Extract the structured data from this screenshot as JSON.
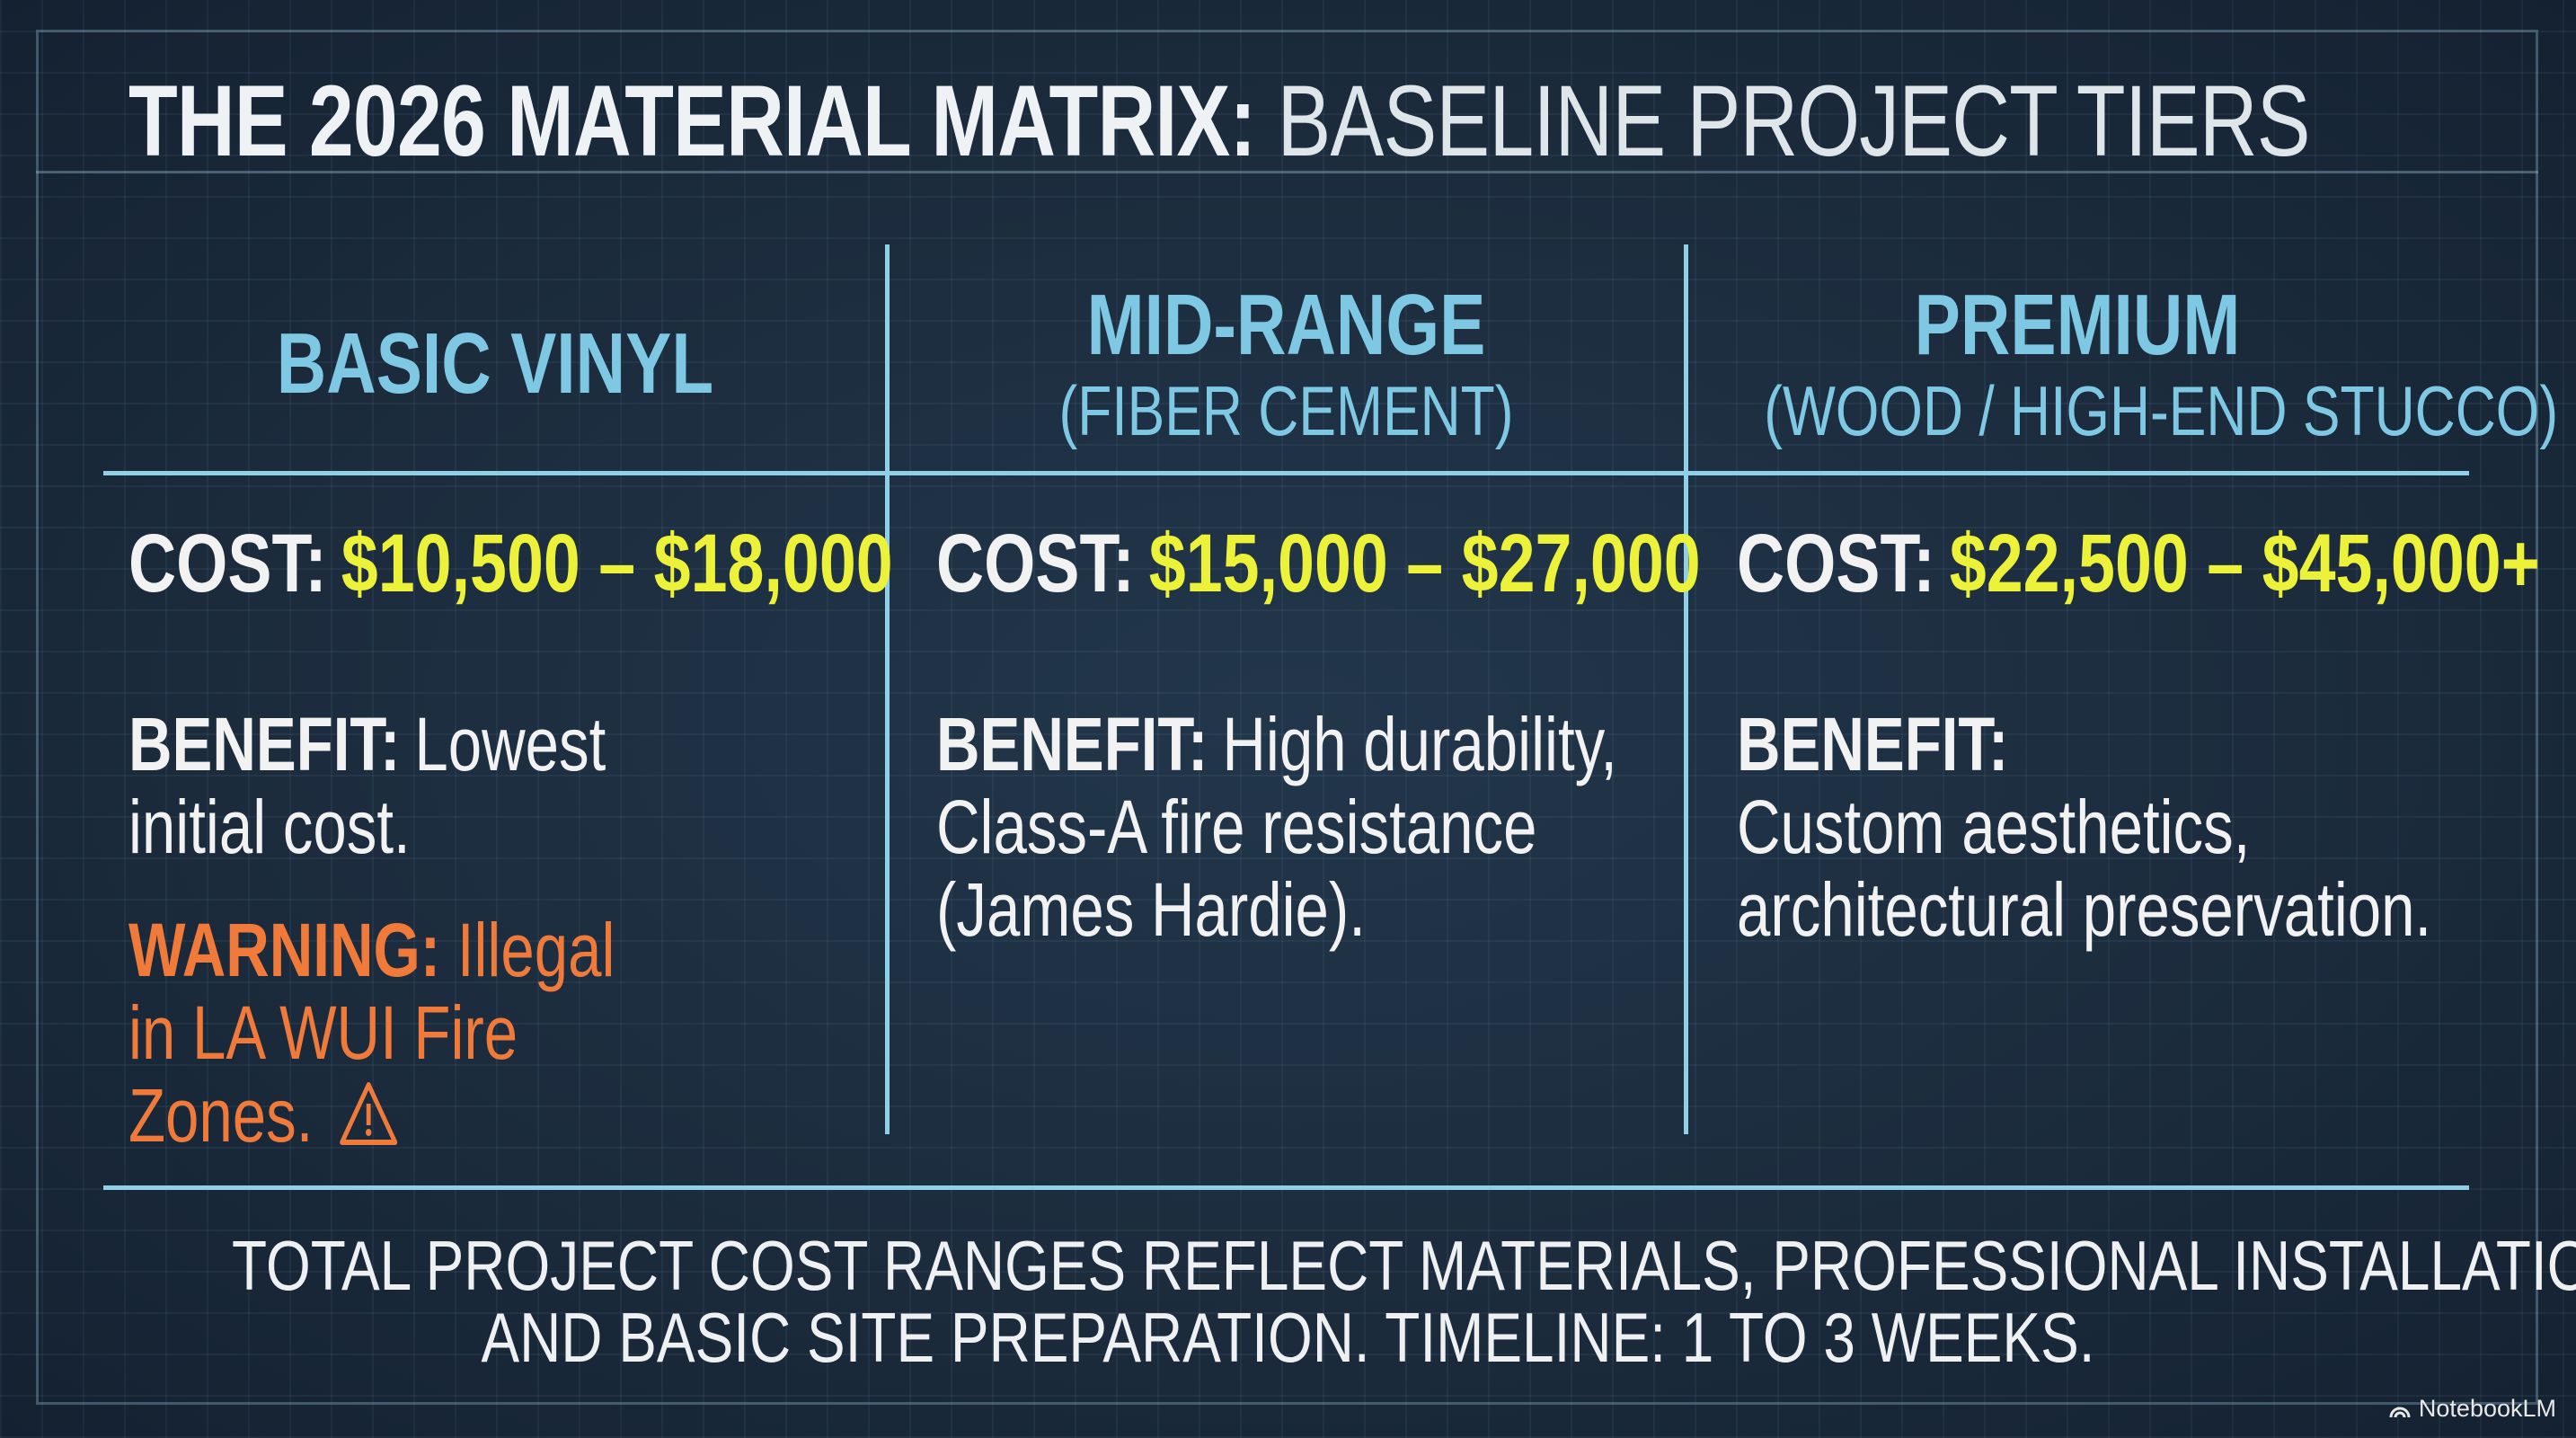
{
  "title": {
    "bold": "THE 2026 MATERIAL MATRIX:",
    "regular": "BASELINE PROJECT TIERS"
  },
  "columns": [
    {
      "heading": "BASIC VINYL",
      "cost_label": "COST:",
      "cost": "$10,500 – $18,000",
      "benefit_label": "BENEFIT:",
      "benefit": "Lowest initial cost.",
      "warning_label": "WARNING:",
      "warning": "Illegal in LA WUI Fire Zones."
    },
    {
      "heading": "MID-RANGE",
      "subheading": "(FIBER CEMENT)",
      "cost_label": "COST:",
      "cost": "$15,000 – $27,000",
      "benefit_label": "BENEFIT:",
      "benefit": "High durability, Class-A fire resistance (James Hardie)."
    },
    {
      "heading": "PREMIUM",
      "subheading": "(WOOD / HIGH-END STUCCO)",
      "cost_label": "COST:",
      "cost": "$22,500 – $45,000+",
      "benefit_label": "BENEFIT:",
      "benefit": "Custom aesthetics, architectural preservation."
    }
  ],
  "footer": [
    "TOTAL PROJECT COST RANGES REFLECT MATERIALS, PROFESSIONAL INSTALLATION,",
    "AND BASIC SITE PREPARATION. TIMELINE: 1 TO 3 WEEKS."
  ],
  "watermark": "NotebookLM"
}
